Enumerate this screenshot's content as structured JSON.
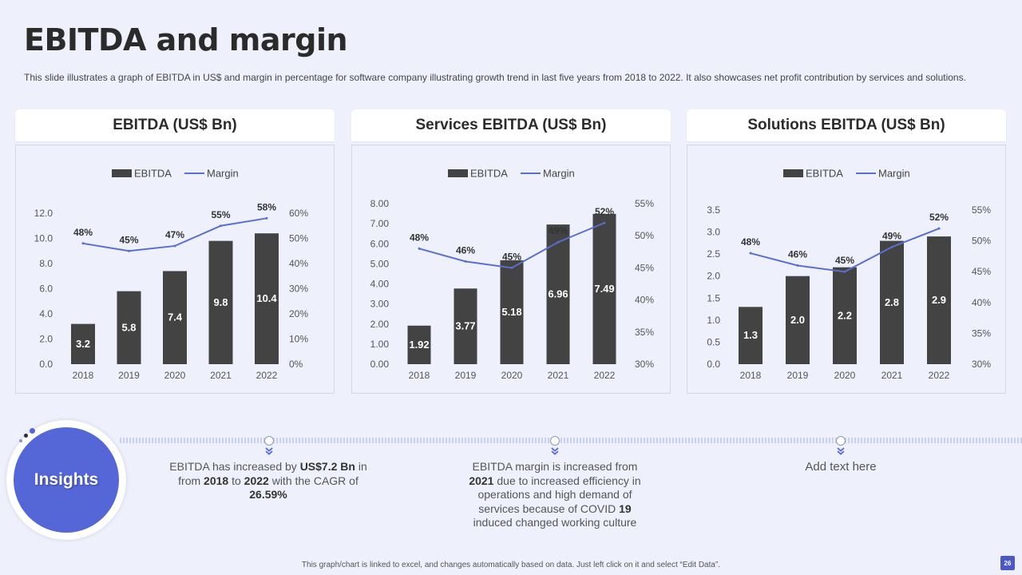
{
  "title": "EBITDA and margin",
  "subtitle": "This slide illustrates a graph of EBITDA  in US$ and margin in percentage for software company illustrating growth trend in last five  years from 2018 to 2022. It also showcases net profit contribution by services and solutions.",
  "colors": {
    "bar": "#434343",
    "line": "#5a6fcc",
    "accent": "#5567d6",
    "page_badge": "#4a58c6"
  },
  "chart_data": [
    {
      "type": "bar",
      "title": "EBITDA (US$ Bn)",
      "legend": [
        "EBITDA",
        "Margin"
      ],
      "legend_position": "top",
      "categories": [
        "2018",
        "2019",
        "2020",
        "2021",
        "2022"
      ],
      "series": [
        {
          "name": "EBITDA",
          "type": "bar",
          "values": [
            3.2,
            5.8,
            7.4,
            9.8,
            10.4
          ],
          "labels": [
            "3.2",
            "5.8",
            "7.4",
            "9.8",
            "10.4"
          ]
        },
        {
          "name": "Margin",
          "type": "line",
          "axis": "right",
          "values": [
            48,
            45,
            47,
            55,
            58
          ],
          "labels": [
            "48%",
            "45%",
            "47%",
            "55%",
            "58%"
          ]
        }
      ],
      "left_axis": {
        "min": 0,
        "max": 12,
        "ticks": [
          "0.0",
          "2.0",
          "4.0",
          "6.0",
          "8.0",
          "10.0",
          "12.0"
        ]
      },
      "right_axis": {
        "min": 0,
        "max": 60,
        "ticks": [
          "0%",
          "10%",
          "20%",
          "30%",
          "40%",
          "50%",
          "60%"
        ]
      },
      "grid": false
    },
    {
      "type": "bar",
      "title": "Services EBITDA (US$ Bn)",
      "legend": [
        "EBITDA",
        "Margin"
      ],
      "legend_position": "top",
      "categories": [
        "2018",
        "2019",
        "2020",
        "2021",
        "2022"
      ],
      "series": [
        {
          "name": "EBITDA",
          "type": "bar",
          "values": [
            1.92,
            3.77,
            5.18,
            6.96,
            7.49
          ],
          "labels": [
            "1.92",
            "3.77",
            "5.18",
            "6.96",
            "7.49"
          ]
        },
        {
          "name": "Margin",
          "type": "line",
          "axis": "right",
          "values": [
            48,
            46,
            45,
            49,
            52
          ],
          "labels": [
            "48%",
            "46%",
            "45%",
            "49%",
            "52%"
          ]
        }
      ],
      "left_axis": {
        "min": 0,
        "max": 8,
        "ticks": [
          "0.00",
          "1.00",
          "2.00",
          "3.00",
          "4.00",
          "5.00",
          "6.00",
          "7.00",
          "8.00"
        ]
      },
      "right_axis": {
        "min": 30,
        "max": 55,
        "ticks": [
          "30%",
          "35%",
          "40%",
          "45%",
          "50%",
          "55%"
        ]
      },
      "grid": false
    },
    {
      "type": "bar",
      "title": "Solutions EBITDA (US$ Bn)",
      "legend": [
        "EBITDA",
        "Margin"
      ],
      "legend_position": "top",
      "categories": [
        "2018",
        "2019",
        "2020",
        "2021",
        "2022"
      ],
      "series": [
        {
          "name": "EBITDA",
          "type": "bar",
          "values": [
            1.3,
            2.0,
            2.2,
            2.8,
            2.9
          ],
          "labels": [
            "1.3",
            "2.0",
            "2.2",
            "2.8",
            "2.9"
          ]
        },
        {
          "name": "Margin",
          "type": "line",
          "axis": "right",
          "values": [
            48,
            46,
            45,
            49,
            52
          ],
          "labels": [
            "48%",
            "46%",
            "45%",
            "49%",
            "52%"
          ]
        }
      ],
      "left_axis": {
        "min": 0,
        "max": 3.5,
        "ticks": [
          "0.0",
          "0.5",
          "1.0",
          "1.5",
          "2.0",
          "2.5",
          "3.0",
          "3.5"
        ]
      },
      "right_axis": {
        "min": 30,
        "max": 55,
        "ticks": [
          "30%",
          "35%",
          "40%",
          "45%",
          "50%",
          "55%"
        ]
      },
      "grid": false
    }
  ],
  "insights": {
    "label": "Insights",
    "items": [
      {
        "p1": "EBITDA has increased by ",
        "b1": "US$7.2 Bn",
        "p2": " in from ",
        "b2": "2018",
        "p3": " to ",
        "b3": "2022",
        "p4": " with the CAGR of ",
        "b4": "26.59%"
      },
      {
        "p1": "EBITDA margin is increased from ",
        "b1": "2021",
        "p2": " due to increased efficiency in operations and high demand of services because of COVID ",
        "b2": "19",
        "p3": " induced changed working culture"
      },
      {
        "p1": "Add text here"
      }
    ]
  },
  "footer": "This graph/chart is linked to excel, and changes automatically based on data. Just left click on it and select “Edit Data”.",
  "page_number": "26"
}
